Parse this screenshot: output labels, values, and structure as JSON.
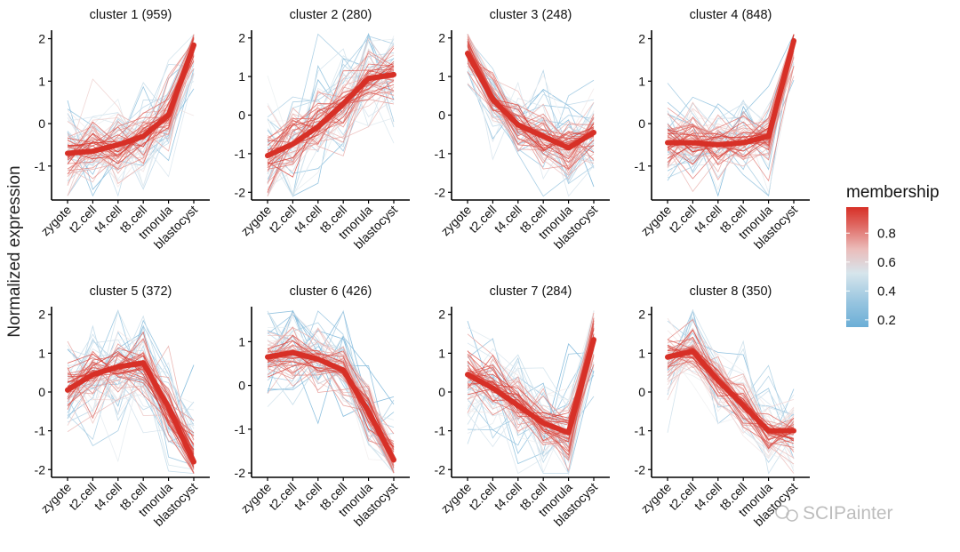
{
  "chart_data": {
    "type": "line",
    "ylabel": "Normalized expression",
    "x": [
      "zygote",
      "t2.cell",
      "t4.cell",
      "t8.cell",
      "tmorula",
      "blastocyst"
    ],
    "legend": {
      "title": "membership",
      "ticks": [
        0.8,
        0.6,
        0.4,
        0.2
      ],
      "range": [
        0.15,
        0.98
      ],
      "colors": {
        "low": "#6baed6",
        "mid": "#f2f2f2",
        "high": "#d73027"
      },
      "position": "right"
    },
    "grid": false,
    "watermark": "SCIPainter",
    "panels": [
      {
        "title": "cluster 1 (959)",
        "ylim": [
          -1.8,
          2.2
        ],
        "yticks": [
          -1,
          0,
          1,
          2
        ],
        "centroid": [
          -0.7,
          -0.65,
          -0.5,
          -0.3,
          0.2,
          1.85
        ],
        "spread": 0.45
      },
      {
        "title": "cluster 2 (280)",
        "ylim": [
          -2.2,
          2.2
        ],
        "yticks": [
          -2,
          -1,
          0,
          1,
          2
        ],
        "centroid": [
          -1.05,
          -0.75,
          -0.3,
          0.3,
          0.95,
          1.05
        ],
        "spread": 0.55
      },
      {
        "title": "cluster 3 (248)",
        "ylim": [
          -2.2,
          2.2
        ],
        "yticks": [
          -2,
          -1,
          0,
          1,
          2
        ],
        "centroid": [
          1.6,
          0.4,
          -0.25,
          -0.55,
          -0.85,
          -0.45
        ],
        "spread": 0.45
      },
      {
        "title": "cluster 4 (848)",
        "ylim": [
          -1.8,
          2.2
        ],
        "yticks": [
          -1,
          0,
          1,
          2
        ],
        "centroid": [
          -0.45,
          -0.45,
          -0.5,
          -0.45,
          -0.3,
          1.95
        ],
        "spread": 0.45
      },
      {
        "title": "cluster 5 (372)",
        "ylim": [
          -2.2,
          2.2
        ],
        "yticks": [
          -2,
          -1,
          0,
          1,
          2
        ],
        "centroid": [
          0.05,
          0.45,
          0.65,
          0.75,
          -0.4,
          -1.8
        ],
        "spread": 0.55
      },
      {
        "title": "cluster 6 (426)",
        "ylim": [
          -2.1,
          1.8
        ],
        "yticks": [
          -2,
          -1,
          0,
          1
        ],
        "centroid": [
          0.65,
          0.75,
          0.6,
          0.35,
          -0.6,
          -1.7
        ],
        "spread": 0.4
      },
      {
        "title": "cluster 7 (284)",
        "ylim": [
          -2.2,
          2.2
        ],
        "yticks": [
          -2,
          -1,
          0,
          1,
          2
        ],
        "centroid": [
          0.45,
          0.1,
          -0.35,
          -0.8,
          -1.05,
          1.35
        ],
        "spread": 0.5
      },
      {
        "title": "cluster 8 (350)",
        "ylim": [
          -2.2,
          2.2
        ],
        "yticks": [
          -2,
          -1,
          0,
          1,
          2
        ],
        "centroid": [
          0.9,
          1.05,
          0.3,
          -0.35,
          -1.0,
          -1.0
        ],
        "spread": 0.45
      }
    ]
  }
}
